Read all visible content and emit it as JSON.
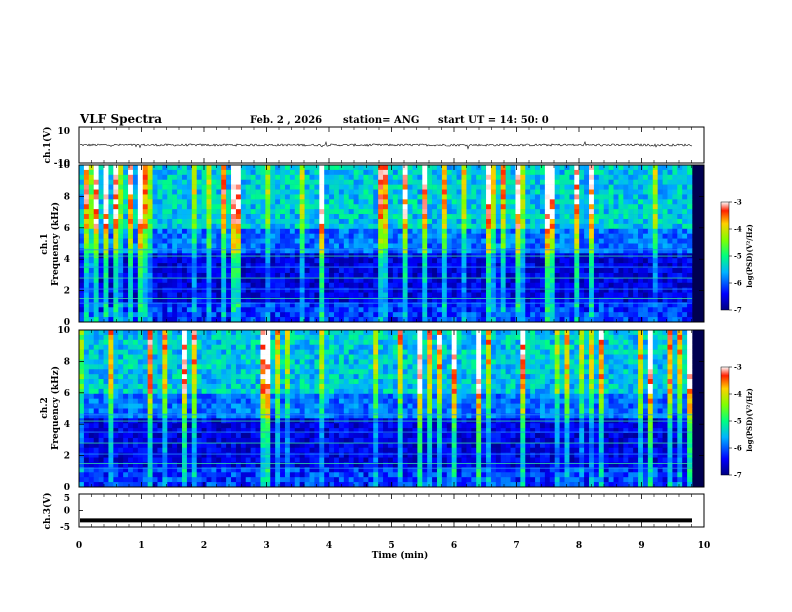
{
  "header": {
    "title": "VLF Spectra",
    "date": "Feb. 2 , 2026",
    "station": "station= ANG",
    "start": "start UT =   14: 50: 0"
  },
  "chart_data": [
    {
      "type": "line",
      "name": "ch1-waveform",
      "ylabel": "ch.1(V)",
      "ylim": [
        -10,
        10
      ],
      "yticks": [
        {
          "v": 10,
          "label": "10"
        },
        {
          "v": -10,
          "label": "-10"
        }
      ],
      "baseline": 0,
      "amplitude": 1.2
    },
    {
      "type": "heatmap",
      "name": "ch1-spectrogram",
      "ylabel": "ch.1\nFrequency (kHz)",
      "ylim": [
        0,
        10
      ],
      "yticks": [
        "0",
        "2",
        "4",
        "6",
        "8",
        "10"
      ],
      "colorbar": {
        "label": "log(PSD)(V²/Hz)",
        "range": [
          -7,
          -3
        ],
        "ticks": [
          "-3",
          "-4",
          "-5",
          "-6",
          "-7"
        ]
      }
    },
    {
      "type": "heatmap",
      "name": "ch2-spectrogram",
      "ylabel": "ch.2\nFrequency (kHz)",
      "ylim": [
        0,
        10
      ],
      "yticks": [
        "0",
        "2",
        "4",
        "6",
        "8",
        "10"
      ],
      "colorbar": {
        "label": "log(PSD)(V²/Hz)",
        "range": [
          -7,
          -3
        ],
        "ticks": [
          "-3",
          "-4",
          "-5",
          "-6",
          "-7"
        ]
      }
    },
    {
      "type": "line",
      "name": "ch3-waveform",
      "ylabel": "ch.3(V)",
      "ylim": [
        -5,
        5
      ],
      "yticks": [
        {
          "v": 5,
          "label": "5"
        },
        {
          "v": 0,
          "label": "0"
        },
        {
          "v": -5,
          "label": "-5"
        }
      ],
      "baseline": -3.0,
      "amplitude": 0
    }
  ],
  "xaxis": {
    "xlabel": "Time (min)",
    "xlim": [
      0,
      10
    ],
    "ticks": [
      "0",
      "1",
      "2",
      "3",
      "4",
      "5",
      "6",
      "7",
      "8",
      "9",
      "10"
    ]
  }
}
